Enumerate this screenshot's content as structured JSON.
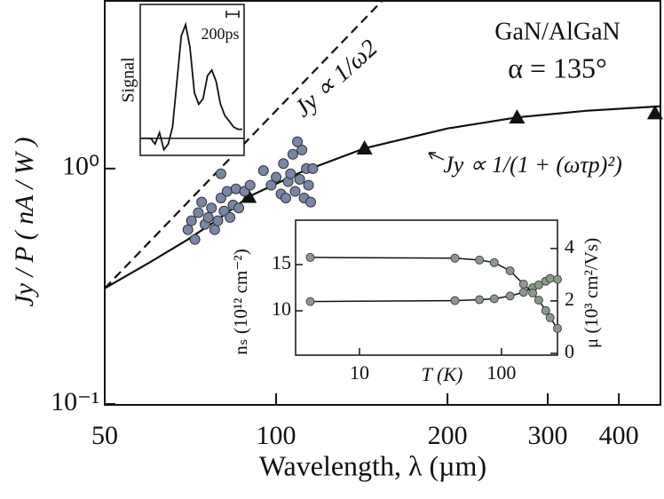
{
  "chart_data": [
    {
      "type": "line",
      "title": "GaN/AlGaN",
      "subtitle": "α = 135°",
      "x_label": "Wavelength, λ  (µm)",
      "y_label": "Jy / P  ( nA / W )",
      "xlog": true,
      "ylog": true,
      "xlim": [
        50,
        475
      ],
      "ylim": [
        0.1,
        5.2
      ],
      "xticks": [
        50,
        100,
        200,
        300,
        400
      ],
      "yticks": [
        {
          "value": 0.1,
          "label": "10⁻¹"
        },
        {
          "value": 1,
          "label": "10⁰"
        }
      ],
      "annotations": [
        "Jy ∝ 1/ω2",
        "Jy ∝ 1/(1 + (ωτp)²)"
      ],
      "series": [
        {
          "color": "#111",
          "dash": true,
          "marker": "none",
          "x": [
            50,
            154
          ],
          "values": [
            0.31,
            5.2
          ]
        },
        {
          "color": "#111",
          "dash": false,
          "marker": "none",
          "x": [
            50,
            60,
            70,
            80,
            89.5,
            110,
            143,
            200,
            265,
            350,
            475
          ],
          "values": [
            0.31,
            0.4,
            0.5,
            0.62,
            0.76,
            0.96,
            1.22,
            1.48,
            1.65,
            1.76,
            1.84
          ]
        },
        {
          "color": "#111",
          "dash": false,
          "marker": "triangle",
          "x": [
            89.5,
            143,
            265,
            463
          ],
          "values": [
            0.76,
            1.22,
            1.65,
            1.72
          ]
        },
        {
          "color": "#7a86a8",
          "dash": false,
          "marker": "circle",
          "x": [
            70,
            71,
            72,
            73,
            74,
            75,
            76,
            77,
            78,
            79,
            80,
            81,
            82,
            83,
            84,
            85,
            86,
            88,
            90,
            80,
            95,
            98,
            100,
            102,
            103,
            105,
            106,
            107,
            108,
            110,
            111,
            112,
            113,
            114,
            115,
            116,
            109,
            104
          ],
          "values": [
            0.55,
            0.6,
            0.5,
            0.65,
            0.72,
            0.58,
            0.62,
            0.68,
            0.55,
            0.6,
            0.75,
            0.66,
            0.8,
            0.62,
            0.7,
            0.82,
            0.68,
            0.8,
            0.85,
            0.95,
            0.98,
            0.85,
            0.92,
            0.78,
            1.05,
            0.88,
            0.95,
            1.15,
            0.8,
            0.9,
            1.2,
            0.75,
            1.0,
            0.85,
            0.72,
            1.0,
            1.3,
            0.75
          ]
        }
      ]
    },
    {
      "type": "line",
      "y_label": "Signal",
      "xlim": [
        0,
        1610
      ],
      "ylim": [
        -0.15,
        1.1
      ],
      "scale_bar": {
        "value": 200,
        "label": "200ps"
      },
      "series": [
        {
          "color": "#111",
          "x": [
            0,
            70,
            140,
            210,
            280,
            350,
            420,
            490,
            560,
            630,
            700,
            770,
            840,
            910,
            980,
            1050,
            1120,
            1190,
            1260,
            1330,
            1400,
            1470,
            1540,
            1610
          ],
          "values": [
            0,
            0,
            0,
            -0.05,
            0.05,
            -0.1,
            -0.05,
            0.1,
            0.5,
            0.9,
            1.0,
            0.8,
            0.4,
            0.3,
            0.35,
            0.55,
            0.6,
            0.5,
            0.3,
            0.2,
            0.15,
            0.1,
            0.08,
            0.08
          ]
        }
      ]
    },
    {
      "type": "scatter",
      "x_label": "T (K)",
      "y_label": "nₛ (10¹² cm⁻²)",
      "y2_label": "μ (10³ cm²/Vs)",
      "xlog": true,
      "xlim": [
        3.55,
        248
      ],
      "ylim": [
        5.2,
        19.8
      ],
      "y2lim": [
        -0.07,
        5.08
      ],
      "xticks": [
        10,
        100
      ],
      "yticks": [
        10,
        15
      ],
      "y2ticks": [
        0,
        2,
        4
      ],
      "series": [
        {
          "color": "#8a9a8a",
          "x": [
            4.5,
            47,
            70,
            89,
            115,
            143,
            166,
            183,
            205,
            220,
            248
          ],
          "values": [
            11,
            11.1,
            11.2,
            11.3,
            11.6,
            12.0,
            12.5,
            12.8,
            13.2,
            13.5,
            13.4
          ]
        },
        {
          "color": "#8a9a8a",
          "axis": "y2",
          "x": [
            4.5,
            47,
            70,
            89,
            115,
            143,
            166,
            183,
            205,
            220,
            248
          ],
          "values": [
            3.66,
            3.63,
            3.56,
            3.46,
            3.15,
            2.64,
            2.3,
            2.03,
            1.63,
            1.36,
            0.95
          ]
        }
      ]
    }
  ]
}
